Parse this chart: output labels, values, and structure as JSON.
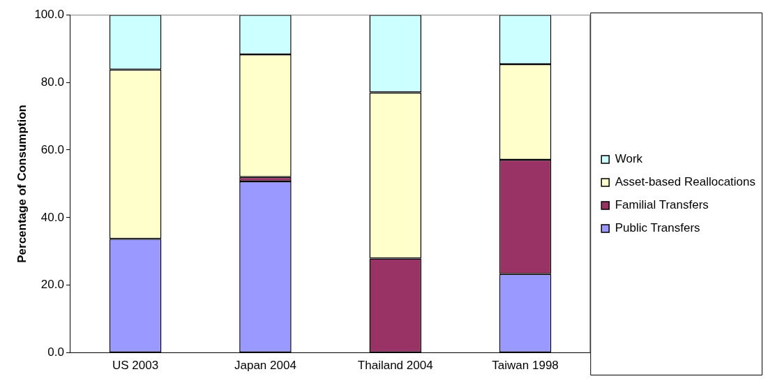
{
  "chart_data": {
    "type": "bar",
    "stacked": true,
    "ylabel": "Percentage of Consumption",
    "categories": [
      "US 2003",
      "Japan 2004",
      "Thailand 2004",
      "Taiwan 1998"
    ],
    "series": [
      {
        "name": "Public Transfers",
        "color": "#9999ff",
        "values": [
          33.7,
          50.7,
          0,
          23.3
        ]
      },
      {
        "name": "Familial Transfers",
        "color": "#993366",
        "values": [
          0,
          1.3,
          27.9,
          33.8
        ]
      },
      {
        "name": "Asset-based Reallocations",
        "color": "#ffffcc",
        "values": [
          50.1,
          36.3,
          49.1,
          28.3
        ]
      },
      {
        "name": "Work",
        "color": "#ccffff",
        "values": [
          16.2,
          11.7,
          23.0,
          14.6
        ]
      }
    ],
    "ylim": [
      0,
      100
    ],
    "yticks": [
      {
        "value": 0,
        "label": "0.0"
      },
      {
        "value": 20,
        "label": "20.0"
      },
      {
        "value": 40,
        "label": "40.0"
      },
      {
        "value": 60,
        "label": "60.0"
      },
      {
        "value": 80,
        "label": "80.0"
      },
      {
        "value": 100,
        "label": "100.0"
      }
    ],
    "grid": false,
    "legend": "right"
  }
}
